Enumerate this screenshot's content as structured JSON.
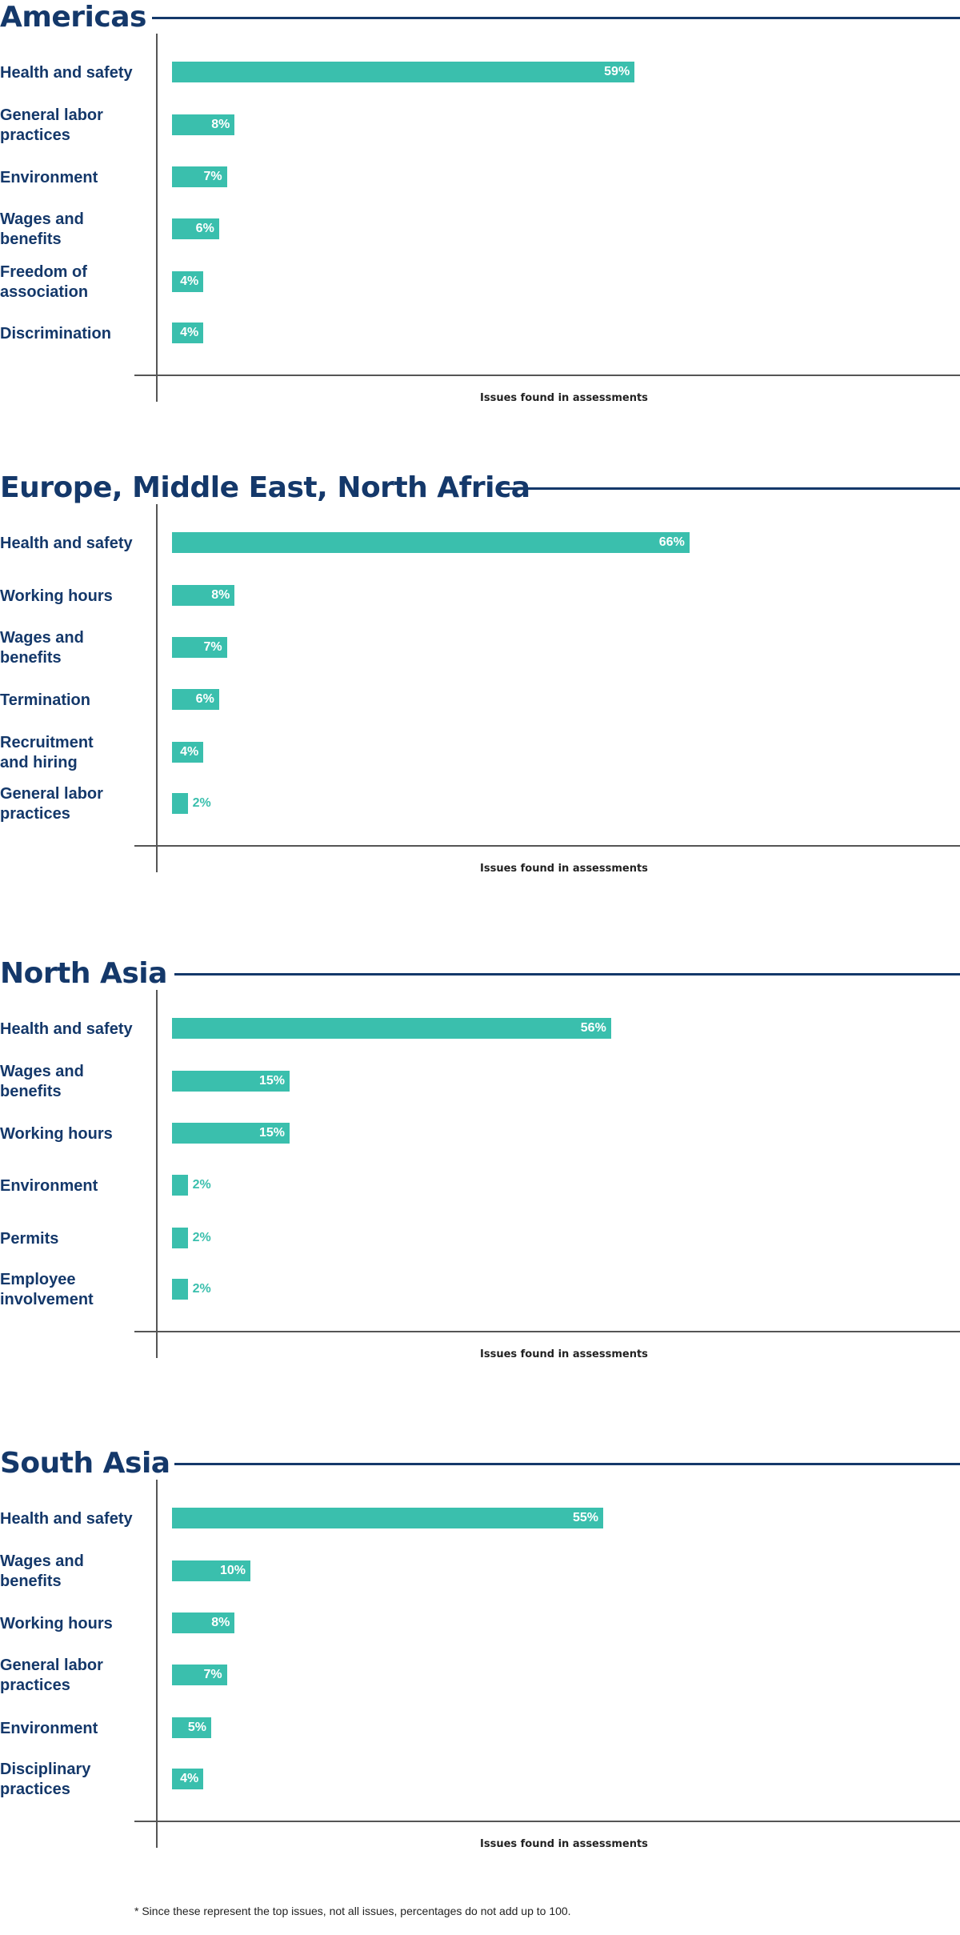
{
  "chart_data": [
    {
      "type": "bar",
      "orientation": "horizontal",
      "title": "Americas",
      "categories": [
        "Health and safety",
        "General labor practices",
        "Environment",
        "Wages and benefits",
        "Freedom of association",
        "Discrimination"
      ],
      "category_lines": [
        [
          "Health and safety"
        ],
        [
          "General labor",
          "practices"
        ],
        [
          "Environment"
        ],
        [
          "Wages and",
          "benefits"
        ],
        [
          "Freedom of",
          "association"
        ],
        [
          "Discrimination"
        ]
      ],
      "values": [
        59,
        8,
        7,
        6,
        4,
        4
      ],
      "value_labels": [
        "59%",
        "8%",
        "7%",
        "6%",
        "4%",
        "4%"
      ],
      "xlabel": "Issues found in assessments",
      "xlim": [
        0,
        100
      ],
      "grid": false,
      "color": "#3abfad"
    },
    {
      "type": "bar",
      "orientation": "horizontal",
      "title": "Europe, Middle East, North Africa",
      "categories": [
        "Health and safety",
        "Working hours",
        "Wages and benefits",
        "Termination",
        "Recruitment and hiring",
        "General labor practices"
      ],
      "category_lines": [
        [
          "Health and safety"
        ],
        [
          "Working hours"
        ],
        [
          "Wages and",
          "benefits"
        ],
        [
          "Termination"
        ],
        [
          "Recruitment",
          "and hiring"
        ],
        [
          "General labor",
          "practices"
        ]
      ],
      "values": [
        66,
        8,
        7,
        6,
        4,
        2
      ],
      "value_labels": [
        "66%",
        "8%",
        "7%",
        "6%",
        "4%",
        "2%"
      ],
      "xlabel": "Issues found in assessments",
      "xlim": [
        0,
        100
      ],
      "grid": false,
      "color": "#3abfad"
    },
    {
      "type": "bar",
      "orientation": "horizontal",
      "title": "North Asia",
      "categories": [
        "Health and safety",
        "Wages and benefits",
        "Working hours",
        "Environment",
        "Permits",
        "Employee involvement"
      ],
      "category_lines": [
        [
          "Health and safety"
        ],
        [
          "Wages and",
          "benefits"
        ],
        [
          "Working hours"
        ],
        [
          "Environment"
        ],
        [
          "Permits"
        ],
        [
          "Employee",
          "involvement"
        ]
      ],
      "values": [
        56,
        15,
        15,
        2,
        2,
        2
      ],
      "value_labels": [
        "56%",
        "15%",
        "15%",
        "2%",
        "2%",
        "2%"
      ],
      "xlabel": "Issues found in assessments",
      "xlim": [
        0,
        100
      ],
      "grid": false,
      "color": "#3abfad"
    },
    {
      "type": "bar",
      "orientation": "horizontal",
      "title": "South Asia",
      "categories": [
        "Health and safety",
        "Wages and benefits",
        "Working hours",
        "General labor practices",
        "Environment",
        "Disciplinary practices"
      ],
      "category_lines": [
        [
          "Health and safety"
        ],
        [
          "Wages and",
          "benefits"
        ],
        [
          "Working hours"
        ],
        [
          "General labor",
          "practices"
        ],
        [
          "Environment"
        ],
        [
          "Disciplinary",
          "practices"
        ]
      ],
      "values": [
        55,
        10,
        8,
        7,
        5,
        4
      ],
      "value_labels": [
        "55%",
        "10%",
        "8%",
        "7%",
        "5%",
        "4%"
      ],
      "xlabel": "Issues found in assessments",
      "xlim": [
        0,
        100
      ],
      "grid": false,
      "color": "#3abfad"
    }
  ],
  "footnote": "* Since these represent the top issues, not all issues, percentages do not add up to 100."
}
